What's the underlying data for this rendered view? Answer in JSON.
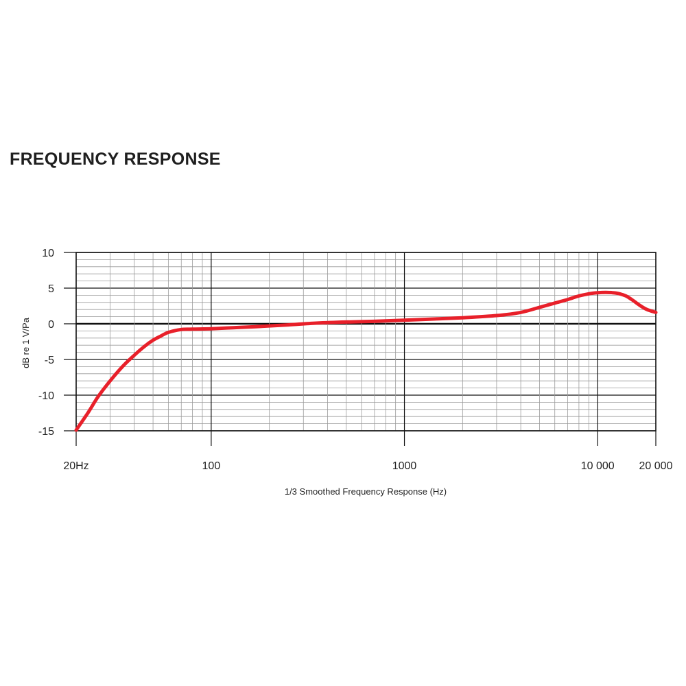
{
  "chart_data": {
    "type": "line",
    "title": "FREQUENCY RESPONSE",
    "xlabel": "1/3 Smoothed Frequency Response (Hz)",
    "ylabel": "dB re 1 V/Pa",
    "x_scale": "log",
    "xlim": [
      20,
      20000
    ],
    "ylim": [
      -15,
      10
    ],
    "grid": true,
    "x_tick_labels": [
      {
        "value": 20,
        "label": "20Hz"
      },
      {
        "value": 100,
        "label": "100"
      },
      {
        "value": 1000,
        "label": "1000"
      },
      {
        "value": 10000,
        "label": "10 000"
      },
      {
        "value": 20000,
        "label": "20 000"
      }
    ],
    "y_tick_labels": [
      {
        "value": 10,
        "label": "10"
      },
      {
        "value": 5,
        "label": "5"
      },
      {
        "value": 0,
        "label": "0"
      },
      {
        "value": -5,
        "label": "-5"
      },
      {
        "value": -10,
        "label": "-10"
      },
      {
        "value": -15,
        "label": "-15"
      }
    ],
    "series": [
      {
        "color": "#e8202a",
        "points": [
          [
            20,
            -14.9
          ],
          [
            23,
            -12.5
          ],
          [
            26,
            -10.2
          ],
          [
            30,
            -8.0
          ],
          [
            35,
            -5.9
          ],
          [
            40,
            -4.4
          ],
          [
            45,
            -3.2
          ],
          [
            50,
            -2.3
          ],
          [
            55,
            -1.7
          ],
          [
            60,
            -1.2
          ],
          [
            70,
            -0.8
          ],
          [
            80,
            -0.75
          ],
          [
            100,
            -0.7
          ],
          [
            130,
            -0.55
          ],
          [
            170,
            -0.4
          ],
          [
            250,
            -0.15
          ],
          [
            350,
            0.1
          ],
          [
            500,
            0.25
          ],
          [
            700,
            0.35
          ],
          [
            1000,
            0.5
          ],
          [
            1500,
            0.7
          ],
          [
            2000,
            0.85
          ],
          [
            3000,
            1.15
          ],
          [
            4000,
            1.6
          ],
          [
            5000,
            2.3
          ],
          [
            6000,
            2.9
          ],
          [
            7000,
            3.4
          ],
          [
            8000,
            3.9
          ],
          [
            9000,
            4.2
          ],
          [
            10000,
            4.35
          ],
          [
            11000,
            4.4
          ],
          [
            12000,
            4.35
          ],
          [
            13000,
            4.2
          ],
          [
            14000,
            3.9
          ],
          [
            15000,
            3.4
          ],
          [
            16500,
            2.6
          ],
          [
            18000,
            2.0
          ],
          [
            20000,
            1.6
          ]
        ]
      }
    ]
  }
}
